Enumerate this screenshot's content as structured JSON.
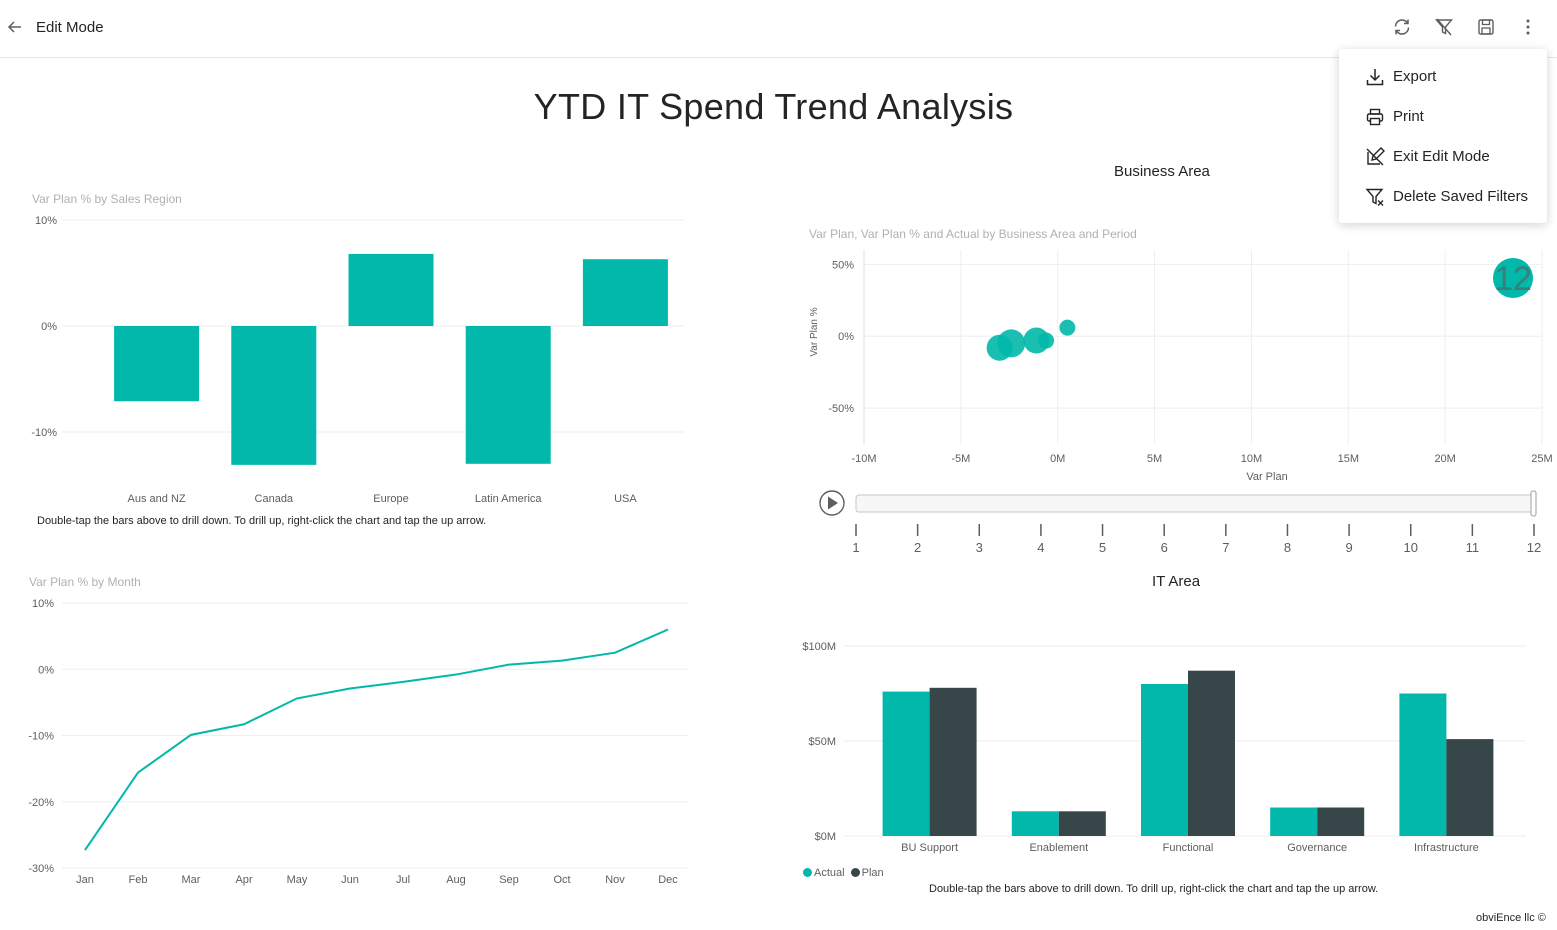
{
  "header": {
    "title": "Edit Mode"
  },
  "page_title": "YTD IT Spend Trend Analysis",
  "menu": {
    "export": "Export",
    "print": "Print",
    "exit_edit": "Exit Edit Mode",
    "delete_filters": "Delete Saved Filters"
  },
  "colors": {
    "teal": "#01B8AA",
    "dark": "#374649",
    "grid": "#eeeeee"
  },
  "region_chart": {
    "title": "Var Plan % by Sales Region",
    "note": "Double-tap the bars above to drill down. To drill up, right-click the chart and tap the up arrow."
  },
  "month_chart": {
    "title": "Var Plan % by Month"
  },
  "business_area": {
    "section": "Business Area",
    "title": "Var Plan, Var Plan % and Actual by Business Area and Period",
    "period_badge": "12"
  },
  "it_area": {
    "section": "IT Area",
    "note": "Double-tap the bars above to drill down. To drill up, right-click the chart and tap the up arrow.",
    "legend": [
      "Actual",
      "Plan"
    ]
  },
  "footer": {
    "copyright": "obviEnce llc ©"
  },
  "chart_data": [
    {
      "type": "bar",
      "title": "Var Plan % by Sales Region",
      "categories": [
        "Aus and NZ",
        "Canada",
        "Europe",
        "Latin America",
        "USA"
      ],
      "values": [
        -7.1,
        -13.1,
        6.8,
        -13.0,
        6.3
      ],
      "yticks": [
        10,
        0,
        -10
      ],
      "ytick_labels": [
        "10%",
        "0%",
        "-10%"
      ],
      "ylim": [
        -15,
        10
      ]
    },
    {
      "type": "line",
      "title": "Var Plan % by Month",
      "categories": [
        "Jan",
        "Feb",
        "Mar",
        "Apr",
        "May",
        "Jun",
        "Jul",
        "Aug",
        "Sep",
        "Oct",
        "Nov",
        "Dec"
      ],
      "values": [
        -27.3,
        -15.6,
        -9.9,
        -8.3,
        -4.4,
        -2.9,
        -1.9,
        -0.8,
        0.7,
        1.3,
        2.5,
        6.0
      ],
      "yticks": [
        10,
        0,
        -10,
        -20,
        -30
      ],
      "ytick_labels": [
        "10%",
        "0%",
        "-10%",
        "-20%",
        "-30%"
      ],
      "ylim": [
        -30,
        10
      ]
    },
    {
      "type": "scatter",
      "title": "Var Plan, Var Plan % and Actual by Business Area and Period",
      "xlabel": "Var Plan",
      "ylabel": "Var Plan %",
      "xticks": [
        -10,
        -5,
        0,
        5,
        10,
        15,
        20,
        25
      ],
      "xtick_labels": [
        "-10M",
        "-5M",
        "0M",
        "5M",
        "10M",
        "15M",
        "20M",
        "25M"
      ],
      "yticks": [
        50,
        0,
        -50
      ],
      "ytick_labels": [
        "50%",
        "0%",
        "-50%"
      ],
      "xlim": [
        -10,
        25
      ],
      "ylim": [
        -75,
        60
      ],
      "points": [
        {
          "x": -3.0,
          "y": -8,
          "size": 13
        },
        {
          "x": -2.4,
          "y": -5,
          "size": 14
        },
        {
          "x": -1.1,
          "y": -3,
          "size": 13
        },
        {
          "x": -0.6,
          "y": -3,
          "size": 8
        },
        {
          "x": 0.5,
          "y": 6,
          "size": 8
        }
      ],
      "play_axis": {
        "labels": [
          "1",
          "2",
          "3",
          "4",
          "5",
          "6",
          "7",
          "8",
          "9",
          "10",
          "11",
          "12"
        ],
        "current": 12
      }
    },
    {
      "type": "bar",
      "title": "IT Area",
      "categories": [
        "BU Support",
        "Enablement",
        "Functional",
        "Governance",
        "Infrastructure"
      ],
      "series": [
        {
          "name": "Actual",
          "values": [
            76,
            13,
            80,
            15,
            75
          ]
        },
        {
          "name": "Plan",
          "values": [
            78,
            13,
            87,
            15,
            51
          ]
        }
      ],
      "yticks": [
        100,
        50,
        0
      ],
      "ytick_labels": [
        "$100M",
        "$50M",
        "$0M"
      ],
      "ylim": [
        0,
        100
      ]
    }
  ]
}
